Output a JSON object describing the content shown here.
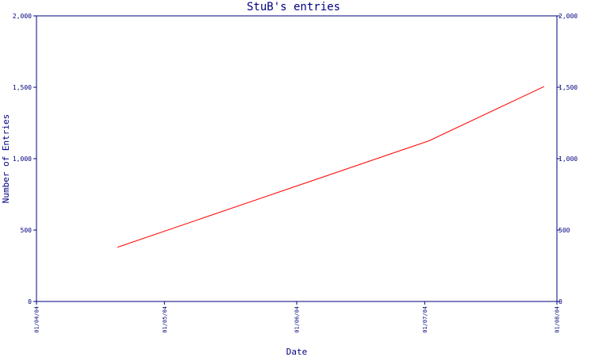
{
  "chart_data": {
    "type": "line",
    "title": "StuB's entries",
    "xlabel": "Date",
    "ylabel": "Number of Entries",
    "ylim": [
      0,
      2000
    ],
    "yticks": [
      0,
      500,
      1000,
      1500,
      2000
    ],
    "ytick_labels": [
      "0",
      "500",
      "1,000",
      "1,500",
      "2,000"
    ],
    "xlim": [
      "2004-04-01",
      "2004-08-01"
    ],
    "xticks": [
      "2004-04-01",
      "2004-05-01",
      "2004-06-01",
      "2004-07-01",
      "2004-08-01"
    ],
    "xtick_labels": [
      "01/04/04",
      "01/05/04",
      "01/06/04",
      "01/07/04",
      "01/08/04"
    ],
    "grid": false,
    "secondary_y_axis": true,
    "series": [
      {
        "color": "#ff0000",
        "points": [
          {
            "x": "2004-04-20",
            "y": 380
          },
          {
            "x": "2004-07-02",
            "y": 1125
          },
          {
            "x": "2004-07-29",
            "y": 1505
          }
        ]
      }
    ]
  },
  "colors": {
    "axis": "#000080",
    "text": "#000080",
    "line": "#ff0000"
  }
}
